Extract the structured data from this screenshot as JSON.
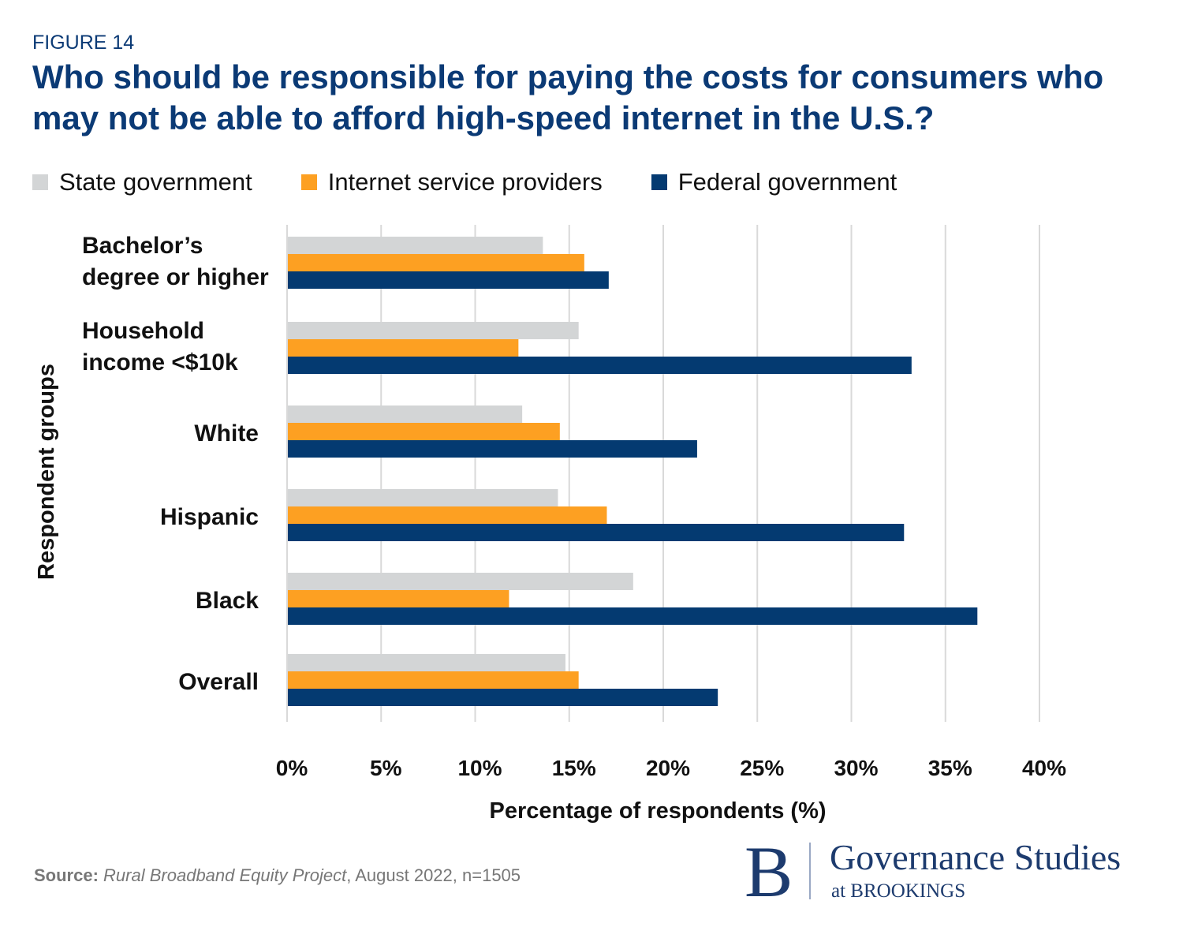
{
  "figure_label": "FIGURE 14",
  "colors": {
    "state": "#d3d5d6",
    "isp": "#fda022",
    "federal": "#043a71",
    "title": "#0b3a75",
    "grid": "#d9d9d9"
  },
  "chart_data": {
    "type": "bar",
    "orientation": "horizontal",
    "title": "Who should be responsible for paying the costs for consumers who may not be able to afford high-speed internet in the U.S.?",
    "xlabel": "Percentage of respondents (%)",
    "ylabel": "Respondent groups",
    "xlim": [
      0,
      40
    ],
    "xticks": [
      "0%",
      "5%",
      "10%",
      "15%",
      "20%",
      "25%",
      "30%",
      "35%",
      "40%"
    ],
    "grid": true,
    "legend_position": "top",
    "categories": [
      "Bachelor’s degree or higher",
      "Household income <$10k",
      "White",
      "Hispanic",
      "Black",
      "Overall"
    ],
    "category_lines": [
      [
        "Bachelor’s",
        "degree or higher"
      ],
      [
        "Household",
        "income <$10k"
      ],
      [
        "White"
      ],
      [
        "Hispanic"
      ],
      [
        "Black"
      ],
      [
        "Overall"
      ]
    ],
    "series": [
      {
        "name": "State government",
        "values": [
          13.6,
          15.5,
          12.5,
          14.4,
          18.4,
          14.8
        ]
      },
      {
        "name": "Internet service providers",
        "values": [
          15.8,
          12.3,
          14.5,
          17.0,
          11.8,
          15.5
        ]
      },
      {
        "name": "Federal government",
        "values": [
          17.1,
          33.2,
          21.8,
          32.8,
          36.7,
          22.9
        ]
      }
    ]
  },
  "source": {
    "label": "Source:",
    "title": "Rural Broadband Equity Project",
    "rest": ", August 2022, n=1505"
  },
  "logo": {
    "letter": "B",
    "name": "Governance Studies",
    "sub": "at BROOKINGS"
  }
}
